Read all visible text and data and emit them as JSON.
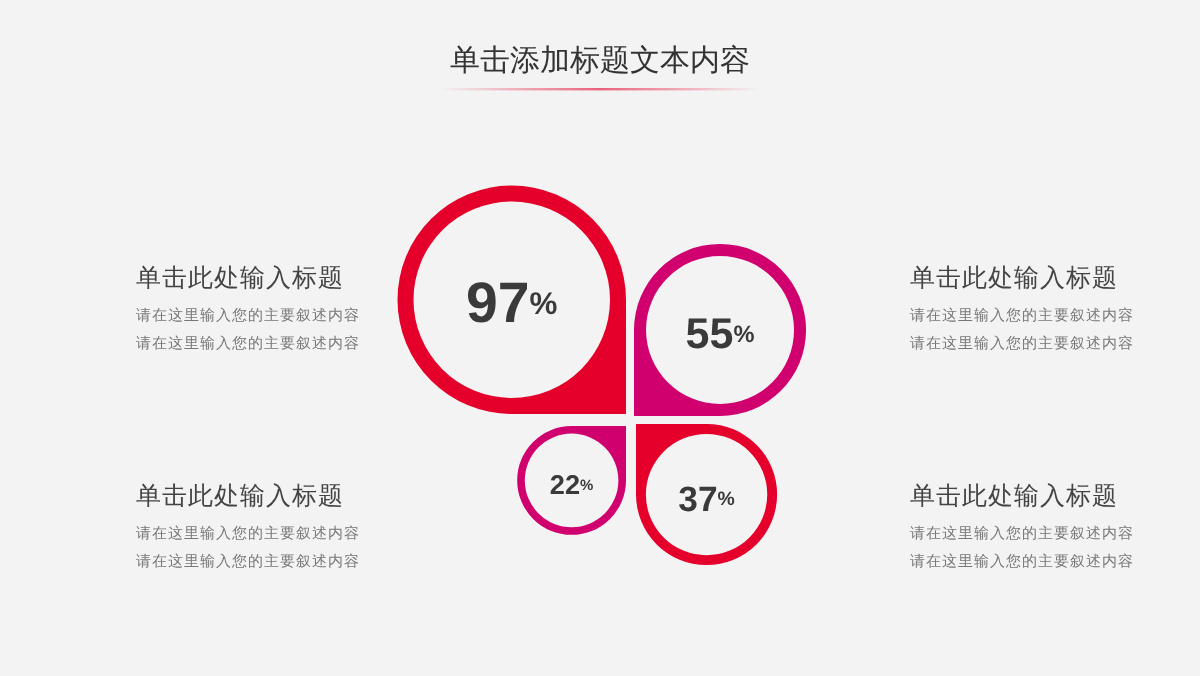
{
  "chart_data": {
    "type": "other",
    "title": "单击添加标题文本内容",
    "categories": [
      "单击此处输入标题",
      "单击此处输入标题",
      "单击此处输入标题",
      "单击此处输入标题"
    ],
    "values": [
      97,
      55,
      22,
      37
    ],
    "value_labels": [
      "97%",
      "55%",
      "22%",
      "37%"
    ],
    "colors": [
      "#e5002b",
      "#d0006f",
      "#d0006f",
      "#e5002b"
    ],
    "annotations": [
      "请在这里输入您的主要叙述内容",
      "请在这里输入您的主要叙述内容",
      "请在这里输入您的主要叙述内容",
      "请在这里输入您的主要叙述内容",
      "请在这里输入您的主要叙述内容",
      "请在这里输入您的主要叙述内容",
      "请在这里输入您的主要叙述内容",
      "请在这里输入您的主要叙述内容"
    ]
  }
}
